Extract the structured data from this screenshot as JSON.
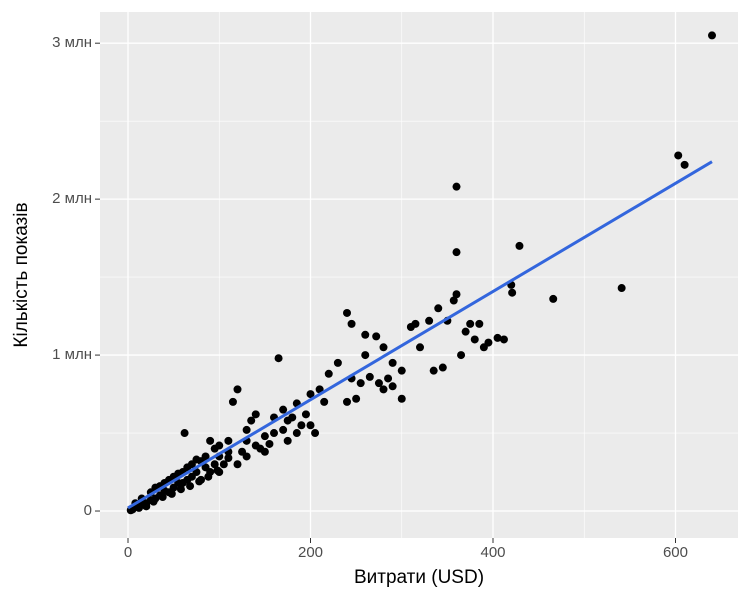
{
  "chart_data": {
    "type": "scatter",
    "x_label": "Витрати (USD)",
    "y_label": "Кількість показів",
    "xlim": [
      -30.7,
      668.5
    ],
    "xticks": [
      0,
      200,
      400,
      600
    ],
    "x_minor_grid": [
      100,
      300,
      500
    ],
    "ylim": [
      -173000,
      3200000
    ],
    "yticks": [
      0,
      {
        "value": 1000000,
        "label": "1 млн"
      },
      {
        "value": 2000000,
        "label": "2 млн"
      },
      {
        "value": 3000000,
        "label": "3 млн"
      }
    ],
    "y_minor_grid": [
      500000,
      1500000,
      2500000,
      3000000
    ],
    "grid": true,
    "background": "#ebebeb",
    "series": [
      {
        "type": "scatter",
        "color": "#000000",
        "x": [
          640,
          603,
          610,
          360,
          360,
          429,
          420,
          421,
          466,
          541,
          360,
          357,
          340,
          330,
          350,
          315,
          240,
          245,
          260,
          272,
          280,
          260,
          290,
          310,
          320,
          335,
          345,
          375,
          385,
          380,
          390,
          405,
          412,
          395,
          370,
          365,
          300,
          290,
          300,
          230,
          220,
          210,
          200,
          215,
          240,
          250,
          245,
          255,
          265,
          275,
          280,
          285,
          165,
          195,
          180,
          170,
          160,
          150,
          190,
          200,
          205,
          140,
          120,
          115,
          130,
          135,
          110,
          100,
          90,
          62,
          95,
          85,
          80,
          75,
          70,
          65,
          60,
          55,
          50,
          45,
          40,
          35,
          30,
          25,
          20,
          15,
          10,
          5,
          3,
          100,
          105,
          110,
          125,
          145,
          155,
          160,
          175,
          185,
          120,
          90,
          70,
          50,
          40,
          30,
          60,
          80,
          100,
          130,
          150,
          175,
          170,
          185,
          140,
          130,
          110,
          95,
          85,
          75,
          65,
          55,
          45,
          35,
          25,
          15,
          8,
          12,
          20,
          28,
          38,
          48,
          58,
          68,
          78,
          88,
          98
        ],
        "values": [
          3050000,
          2280000,
          2220000,
          2080000,
          1660000,
          1700000,
          1450000,
          1400000,
          1360000,
          1430000,
          1390000,
          1350000,
          1300000,
          1220000,
          1220000,
          1200000,
          1270000,
          1200000,
          1130000,
          1120000,
          1050000,
          1000000,
          950000,
          1180000,
          1050000,
          900000,
          920000,
          1200000,
          1200000,
          1100000,
          1050000,
          1110000,
          1100000,
          1080000,
          1150000,
          1000000,
          900000,
          800000,
          720000,
          950000,
          880000,
          780000,
          750000,
          700000,
          700000,
          720000,
          850000,
          820000,
          860000,
          820000,
          780000,
          850000,
          980000,
          620000,
          600000,
          520000,
          500000,
          480000,
          550000,
          550000,
          500000,
          420000,
          780000,
          700000,
          450000,
          580000,
          380000,
          350000,
          450000,
          500000,
          300000,
          280000,
          320000,
          250000,
          220000,
          200000,
          180000,
          180000,
          150000,
          120000,
          130000,
          100000,
          80000,
          70000,
          50000,
          40000,
          30000,
          10000,
          5000,
          420000,
          300000,
          340000,
          380000,
          400000,
          430000,
          600000,
          450000,
          500000,
          300000,
          250000,
          300000,
          220000,
          180000,
          150000,
          250000,
          200000,
          250000,
          350000,
          380000,
          580000,
          650000,
          690000,
          620000,
          520000,
          450000,
          400000,
          350000,
          330000,
          280000,
          240000,
          200000,
          160000,
          120000,
          80000,
          50000,
          20000,
          30000,
          60000,
          90000,
          110000,
          140000,
          160000,
          190000,
          220000,
          260000
        ]
      },
      {
        "type": "line",
        "color": "#3366dd",
        "x": [
          0,
          640
        ],
        "values": [
          20000,
          2240000
        ]
      }
    ]
  }
}
